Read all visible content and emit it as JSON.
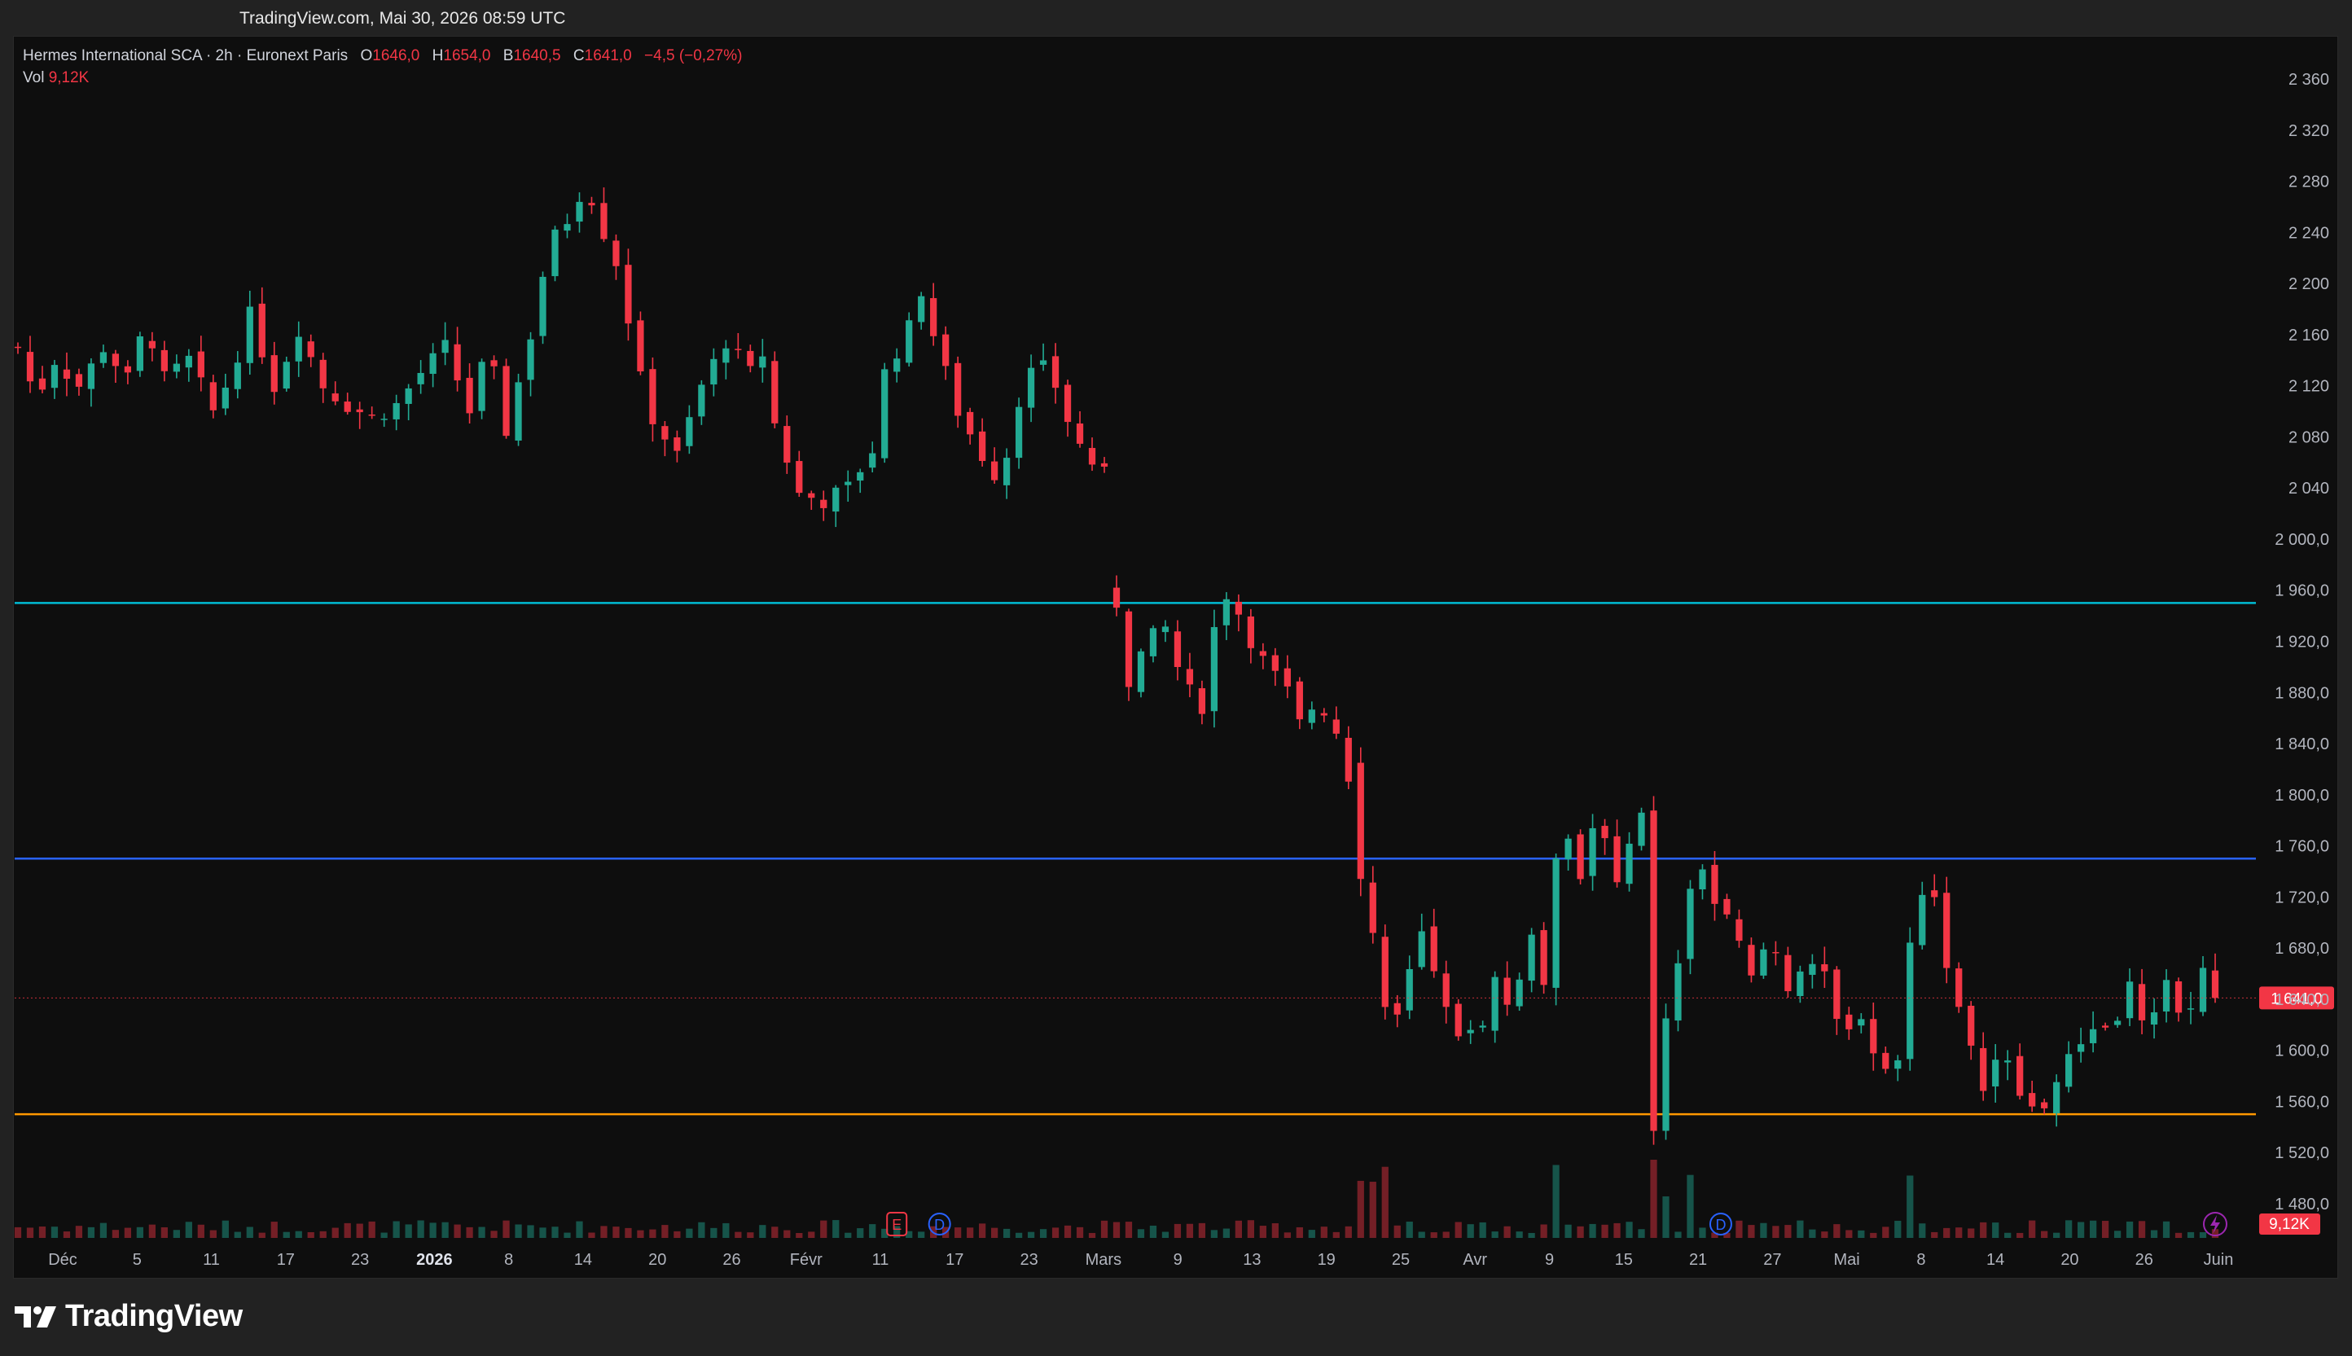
{
  "watermark": "TradingView.com, Mai 30, 2026 08:59 UTC",
  "brand": "TradingView",
  "legend": {
    "symbol": "Hermes International SCA · 2h · Euronext Paris",
    "open_label": "O",
    "open": "1646,0",
    "high_label": "H",
    "high": "1654,0",
    "low_label": "B",
    "low": "1640,5",
    "close_label": "C",
    "close": "1641,0",
    "change": "−4,5 (−0,27%)",
    "vol_label": "Vol",
    "vol": "9,12K"
  },
  "chart_data": {
    "type": "candlestick",
    "y_axis": {
      "min": 1460,
      "max": 2380,
      "ticks": [
        {
          "value": 2360,
          "label": "2 360"
        },
        {
          "value": 2320,
          "label": "2 320"
        },
        {
          "value": 2280,
          "label": "2 280"
        },
        {
          "value": 2240,
          "label": "2 240"
        },
        {
          "value": 2200,
          "label": "2 200"
        },
        {
          "value": 2160,
          "label": "2 160"
        },
        {
          "value": 2120,
          "label": "2 120"
        },
        {
          "value": 2080,
          "label": "2 080"
        },
        {
          "value": 2040,
          "label": "2 040"
        },
        {
          "value": 2000,
          "label": "2 000,0"
        },
        {
          "value": 1960,
          "label": "1 960,0"
        },
        {
          "value": 1920,
          "label": "1 920,0"
        },
        {
          "value": 1880,
          "label": "1 880,0"
        },
        {
          "value": 1840,
          "label": "1 840,0"
        },
        {
          "value": 1800,
          "label": "1 800,0"
        },
        {
          "value": 1760,
          "label": "1 760,0"
        },
        {
          "value": 1720,
          "label": "1 720,0"
        },
        {
          "value": 1680,
          "label": "1 680,0"
        },
        {
          "value": 1640,
          "label": "1 640,0"
        },
        {
          "value": 1600,
          "label": "1 600,0"
        },
        {
          "value": 1560,
          "label": "1 560,0"
        },
        {
          "value": 1520,
          "label": "1 520,0"
        },
        {
          "value": 1480,
          "label": "1 480,0"
        }
      ]
    },
    "x_axis": {
      "ticks": [
        {
          "label": "Déc",
          "bold": false
        },
        {
          "label": "5",
          "bold": false
        },
        {
          "label": "11",
          "bold": false
        },
        {
          "label": "17",
          "bold": false
        },
        {
          "label": "23",
          "bold": false
        },
        {
          "label": "2026",
          "bold": true
        },
        {
          "label": "8",
          "bold": false
        },
        {
          "label": "14",
          "bold": false
        },
        {
          "label": "20",
          "bold": false
        },
        {
          "label": "26",
          "bold": false
        },
        {
          "label": "Févr",
          "bold": false
        },
        {
          "label": "11",
          "bold": false
        },
        {
          "label": "17",
          "bold": false
        },
        {
          "label": "23",
          "bold": false
        },
        {
          "label": "Mars",
          "bold": false
        },
        {
          "label": "9",
          "bold": false
        },
        {
          "label": "13",
          "bold": false
        },
        {
          "label": "19",
          "bold": false
        },
        {
          "label": "25",
          "bold": false
        },
        {
          "label": "Avr",
          "bold": false
        },
        {
          "label": "9",
          "bold": false
        },
        {
          "label": "15",
          "bold": false
        },
        {
          "label": "21",
          "bold": false
        },
        {
          "label": "27",
          "bold": false
        },
        {
          "label": "Mai",
          "bold": false
        },
        {
          "label": "8",
          "bold": false
        },
        {
          "label": "14",
          "bold": false
        },
        {
          "label": "20",
          "bold": false
        },
        {
          "label": "26",
          "bold": false
        },
        {
          "label": "Juin",
          "bold": false
        }
      ]
    },
    "price_path": [
      [
        0,
        2150
      ],
      [
        1.5,
        2110
      ],
      [
        3,
        2140
      ],
      [
        5,
        2120
      ],
      [
        7,
        2150
      ],
      [
        9,
        2125
      ],
      [
        10.5,
        2170
      ],
      [
        12,
        2125
      ],
      [
        14,
        2140
      ],
      [
        16,
        2100
      ],
      [
        17.5,
        2130
      ],
      [
        19,
        2175
      ],
      [
        21,
        2120
      ],
      [
        23,
        2165
      ],
      [
        25,
        2120
      ],
      [
        27,
        2105
      ],
      [
        29,
        2095
      ],
      [
        31,
        2105
      ],
      [
        33,
        2130
      ],
      [
        35,
        2150
      ],
      [
        37,
        2100
      ],
      [
        38.5,
        2150
      ],
      [
        40,
        2085
      ],
      [
        42,
        2160
      ],
      [
        43.5,
        2230
      ],
      [
        45,
        2250
      ],
      [
        46.5,
        2280
      ],
      [
        48,
        2240
      ],
      [
        49.5,
        2205
      ],
      [
        50.5,
        2140
      ],
      [
        52,
        2095
      ],
      [
        54,
        2065
      ],
      [
        56,
        2120
      ],
      [
        58,
        2155
      ],
      [
        60,
        2130
      ],
      [
        61,
        2145
      ],
      [
        62,
        2090
      ],
      [
        64,
        2035
      ],
      [
        66,
        2030
      ],
      [
        68,
        2040
      ],
      [
        70,
        2070
      ],
      [
        71,
        2130
      ],
      [
        73,
        2165
      ],
      [
        74,
        2195
      ],
      [
        75,
        2160
      ],
      [
        77,
        2100
      ],
      [
        79,
        2065
      ],
      [
        80.5,
        2045
      ],
      [
        82,
        2110
      ],
      [
        83.5,
        2140
      ],
      [
        85,
        2120
      ],
      [
        86.5,
        2080
      ],
      [
        88,
        2060
      ],
      [
        89.5,
        2045
      ],
      [
        90,
        1950
      ],
      [
        91,
        1890
      ],
      [
        92.5,
        1920
      ],
      [
        94,
        1930
      ],
      [
        95.5,
        1885
      ],
      [
        97,
        1870
      ],
      [
        98.5,
        1960
      ],
      [
        99.5,
        1955
      ],
      [
        100.5,
        1930
      ],
      [
        102,
        1905
      ],
      [
        104,
        1880
      ],
      [
        105,
        1855
      ],
      [
        106.5,
        1875
      ],
      [
        108,
        1850
      ],
      [
        109,
        1815
      ],
      [
        110,
        1740
      ],
      [
        111,
        1690
      ],
      [
        112,
        1640
      ],
      [
        113,
        1625
      ],
      [
        114,
        1660
      ],
      [
        115,
        1690
      ],
      [
        116,
        1660
      ],
      [
        117,
        1630
      ],
      [
        118,
        1615
      ],
      [
        119.5,
        1610
      ],
      [
        121,
        1655
      ],
      [
        122.5,
        1630
      ],
      [
        124,
        1695
      ],
      [
        125,
        1655
      ],
      [
        126.5,
        1790
      ],
      [
        128,
        1735
      ],
      [
        129.5,
        1795
      ],
      [
        131,
        1725
      ],
      [
        132.5,
        1790
      ],
      [
        133.5,
        1780
      ],
      [
        134,
        1535
      ],
      [
        135,
        1620
      ],
      [
        136.5,
        1685
      ],
      [
        137.5,
        1760
      ],
      [
        139,
        1715
      ],
      [
        140.5,
        1695
      ],
      [
        142,
        1655
      ],
      [
        143.5,
        1690
      ],
      [
        145,
        1650
      ],
      [
        146.5,
        1675
      ],
      [
        148,
        1655
      ],
      [
        149.5,
        1605
      ],
      [
        151,
        1630
      ],
      [
        152.5,
        1585
      ],
      [
        154,
        1590
      ],
      [
        155,
        1690
      ],
      [
        156.5,
        1745
      ],
      [
        158,
        1670
      ],
      [
        159.5,
        1610
      ],
      [
        161,
        1575
      ],
      [
        162.5,
        1600
      ],
      [
        164,
        1565
      ],
      [
        165.5,
        1550
      ],
      [
        167,
        1575
      ],
      [
        168.5,
        1600
      ],
      [
        170,
        1620
      ],
      [
        171.5,
        1615
      ],
      [
        173,
        1650
      ],
      [
        174.5,
        1605
      ],
      [
        176,
        1660
      ],
      [
        177.5,
        1615
      ],
      [
        179,
        1665
      ],
      [
        180,
        1641
      ]
    ],
    "n_candles": 181,
    "volume_label": "9,12K",
    "last_price": {
      "value": 1641,
      "label": "1 641,0"
    },
    "horizontal_lines": [
      {
        "value": 1950,
        "color": "#00bcd4"
      },
      {
        "value": 1750,
        "color": "#2962ff"
      },
      {
        "value": 1550,
        "color": "#ff9800"
      }
    ],
    "events": [
      {
        "glyph": "E",
        "color": "#f23645",
        "candle": 72
      },
      {
        "glyph": "D",
        "color": "#2962ff",
        "candle": 75.5
      },
      {
        "glyph": "D",
        "color": "#2962ff",
        "candle": 139.5
      }
    ],
    "colors": {
      "up": "#22ab94",
      "down": "#f23645",
      "background": "#0e0e0e",
      "axis_text": "#b2b5be"
    }
  }
}
